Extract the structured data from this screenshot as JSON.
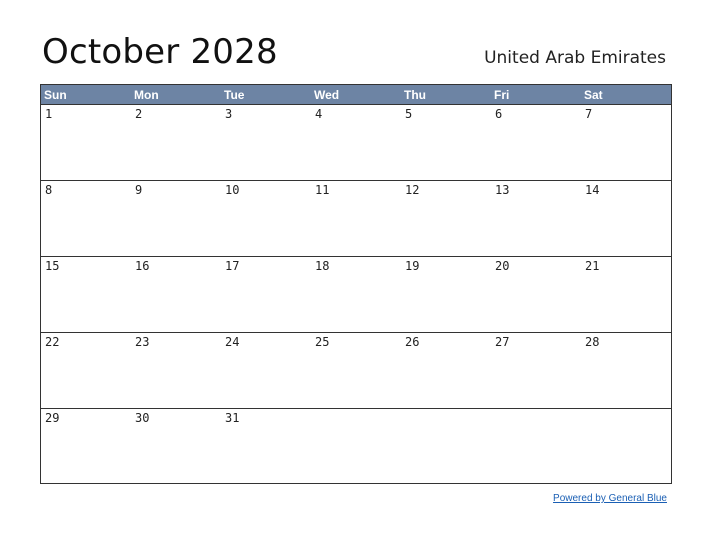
{
  "title": "October 2028",
  "country": "United Arab Emirates",
  "weekdays": [
    "Sun",
    "Mon",
    "Tue",
    "Wed",
    "Thu",
    "Fri",
    "Sat"
  ],
  "weeks": [
    [
      "1",
      "2",
      "3",
      "4",
      "5",
      "6",
      "7"
    ],
    [
      "8",
      "9",
      "10",
      "11",
      "12",
      "13",
      "14"
    ],
    [
      "15",
      "16",
      "17",
      "18",
      "19",
      "20",
      "21"
    ],
    [
      "22",
      "23",
      "24",
      "25",
      "26",
      "27",
      "28"
    ],
    [
      "29",
      "30",
      "31",
      "",
      "",
      "",
      ""
    ]
  ],
  "footer": {
    "link_text": "Powered by General Blue"
  },
  "colors": {
    "header_bg": "#6d84a4",
    "link": "#1a5fb4"
  }
}
